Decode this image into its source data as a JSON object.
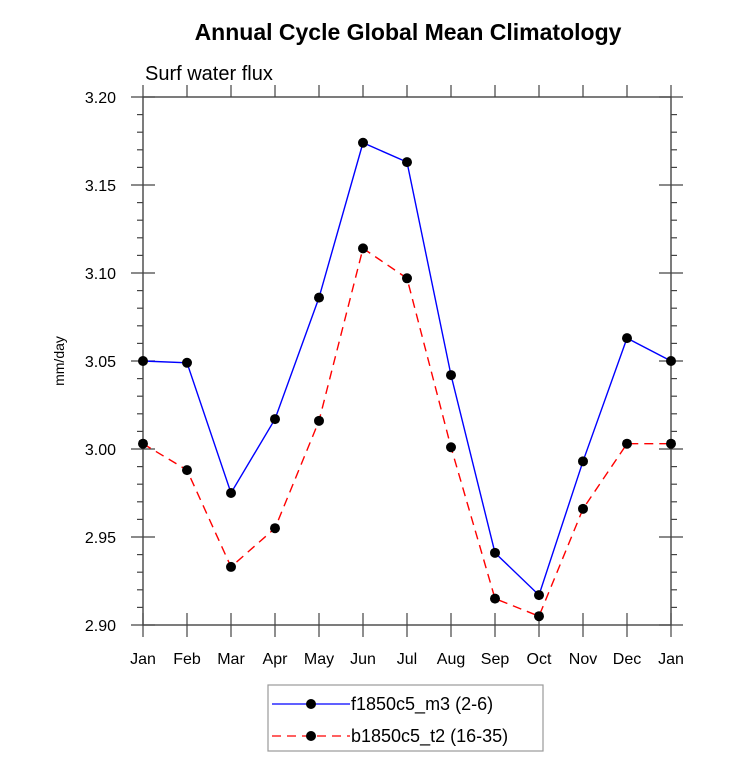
{
  "chart_data": {
    "type": "line",
    "title": "Annual Cycle Global Mean Climatology",
    "subtitle": "Surf water flux",
    "xlabel": "",
    "ylabel": "mm/day",
    "categories": [
      "Jan",
      "Feb",
      "Mar",
      "Apr",
      "May",
      "Jun",
      "Jul",
      "Aug",
      "Sep",
      "Oct",
      "Nov",
      "Dec",
      "Jan"
    ],
    "ylim": [
      2.9,
      3.2
    ],
    "yticks": [
      2.9,
      2.95,
      3.0,
      3.05,
      3.1,
      3.15,
      3.2
    ],
    "ytick_labels": [
      "2.90",
      "2.95",
      "3.00",
      "3.05",
      "3.10",
      "3.15",
      "3.20"
    ],
    "yminor_step": 0.01,
    "grid": false,
    "legend_position": "bottom-center",
    "series": [
      {
        "name": "f1850c5_m3 (2-6)",
        "color": "#0000ff",
        "line_style": "solid",
        "marker": "filled-circle",
        "values": [
          3.05,
          3.049,
          2.975,
          3.017,
          3.086,
          3.174,
          3.163,
          3.042,
          2.941,
          2.917,
          2.993,
          3.063,
          3.05
        ]
      },
      {
        "name": "b1850c5_t2 (16-35)",
        "color": "#ff0000",
        "line_style": "dashed",
        "marker": "filled-circle",
        "values": [
          3.003,
          2.988,
          2.933,
          2.955,
          3.016,
          3.114,
          3.097,
          3.001,
          2.915,
          2.905,
          2.966,
          3.003,
          3.003
        ]
      }
    ]
  }
}
